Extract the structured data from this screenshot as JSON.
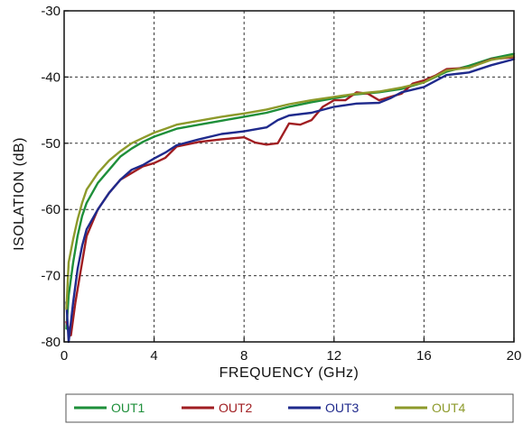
{
  "chart_data": {
    "type": "line",
    "title": "",
    "xlabel": "FREQUENCY (GHz)",
    "ylabel": "ISOLATION (dB)",
    "xlim": [
      0,
      20
    ],
    "ylim": [
      -80,
      -30
    ],
    "xticks": [
      "0",
      "4",
      "8",
      "12",
      "16",
      "20"
    ],
    "yticks": [
      "-30",
      "-40",
      "-50",
      "-60",
      "-70",
      "-80"
    ],
    "grid": true,
    "legend_position": "bottom",
    "series": [
      {
        "name": "OUT1",
        "color": "#1e8f3a",
        "x": [
          0.1,
          0.2,
          0.4,
          0.6,
          0.8,
          1.0,
          1.5,
          2,
          2.5,
          3,
          3.5,
          4,
          4.5,
          5,
          6,
          7,
          8,
          9,
          10,
          11,
          12,
          13,
          14,
          15,
          16,
          17,
          18,
          19,
          20
        ],
        "y": [
          -78,
          -73,
          -68,
          -64,
          -61,
          -59,
          -56,
          -54,
          -52,
          -50.8,
          -49.8,
          -49,
          -48.4,
          -47.8,
          -47.2,
          -46.6,
          -46,
          -45.4,
          -44.5,
          -43.8,
          -43.2,
          -42.6,
          -42.3,
          -41.8,
          -40.8,
          -39.2,
          -38.3,
          -37.2,
          -36.5
        ]
      },
      {
        "name": "OUT2",
        "color": "#a01e22",
        "x": [
          0.1,
          0.3,
          0.5,
          0.7,
          1.0,
          1.5,
          2,
          2.5,
          3,
          3.5,
          4,
          4.5,
          5,
          6,
          7,
          8,
          8.5,
          9,
          9.5,
          10,
          10.5,
          11,
          11.5,
          12,
          12.5,
          13,
          13.5,
          14,
          14.5,
          15,
          15.5,
          16,
          16.5,
          17,
          18,
          19,
          20
        ],
        "y": [
          -77,
          -79,
          -74,
          -70,
          -64,
          -60,
          -57.5,
          -55.5,
          -54.5,
          -53.5,
          -53,
          -52.2,
          -50.5,
          -49.8,
          -49.4,
          -49.1,
          -49.9,
          -50.2,
          -50,
          -47,
          -47.2,
          -46.5,
          -44.5,
          -43.5,
          -43.5,
          -42.3,
          -42.5,
          -43.5,
          -43,
          -42.5,
          -41,
          -40.5,
          -39.8,
          -38.8,
          -38.6,
          -37.3,
          -37
        ]
      },
      {
        "name": "OUT3",
        "color": "#1f2a8c",
        "x": [
          0.1,
          0.2,
          0.4,
          0.6,
          0.8,
          1.0,
          1.5,
          2,
          2.5,
          3,
          3.5,
          4,
          4.5,
          5,
          6,
          7,
          8,
          9,
          9.5,
          10,
          11,
          12,
          13,
          14,
          14.5,
          15,
          16,
          17,
          18,
          19,
          20
        ],
        "y": [
          -74,
          -80,
          -74,
          -69,
          -65.5,
          -63,
          -60,
          -57.5,
          -55.5,
          -54,
          -53.3,
          -52.3,
          -51.4,
          -50.3,
          -49.4,
          -48.6,
          -48.2,
          -47.6,
          -46.5,
          -45.8,
          -45.4,
          -44.5,
          -44,
          -43.9,
          -43.2,
          -42.3,
          -41.5,
          -39.7,
          -39.3,
          -38.2,
          -37.3
        ]
      },
      {
        "name": "OUT4",
        "color": "#8d9a2b",
        "x": [
          0.1,
          0.2,
          0.4,
          0.6,
          0.8,
          1.0,
          1.5,
          2,
          2.5,
          3,
          3.5,
          4,
          4.5,
          5,
          6,
          7,
          8,
          9,
          10,
          11,
          12,
          13,
          14,
          15,
          16,
          17,
          18,
          19,
          20
        ],
        "y": [
          -75,
          -68,
          -64.5,
          -61.5,
          -59,
          -57,
          -54.5,
          -52.6,
          -51.2,
          -50,
          -49.2,
          -48.4,
          -47.8,
          -47.2,
          -46.6,
          -46,
          -45.5,
          -44.9,
          -44.1,
          -43.5,
          -43,
          -42.5,
          -42.2,
          -41.6,
          -40.8,
          -39,
          -38.6,
          -37.4,
          -36.8
        ]
      }
    ]
  }
}
